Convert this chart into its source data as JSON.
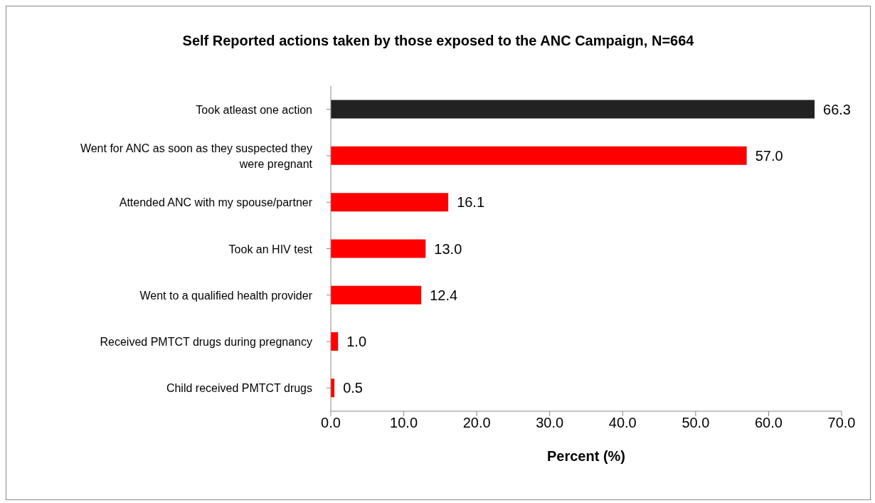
{
  "chart_data": {
    "type": "bar",
    "orientation": "horizontal",
    "title": "Self Reported actions taken by those exposed to the ANC Campaign, N=664",
    "xlabel": "Percent (%)",
    "categories": [
      "Took atleast one action",
      "Went for ANC as soon as they suspected they were pregnant",
      "Attended ANC with my spouse/partner",
      "Took an HIV test",
      "Went to a qualified health provider",
      "Received PMTCT drugs during pregnancy",
      "Child received PMTCT drugs"
    ],
    "values": [
      66.3,
      57.0,
      16.1,
      13.0,
      12.4,
      1.0,
      0.5
    ],
    "value_labels": [
      "66.3",
      "57.0",
      "16.1",
      "13.0",
      "12.4",
      "1.0",
      "0.5"
    ],
    "colors": [
      "#222222",
      "#ff0000",
      "#ff0000",
      "#ff0000",
      "#ff0000",
      "#ff0000",
      "#ff0000"
    ],
    "xlim": [
      0,
      70
    ],
    "xticks": [
      {
        "value": 0,
        "label": "0.0"
      },
      {
        "value": 10,
        "label": "10.0"
      },
      {
        "value": 20,
        "label": "20.0"
      },
      {
        "value": 30,
        "label": "30.0"
      },
      {
        "value": 40,
        "label": "40.0"
      },
      {
        "value": 50,
        "label": "50.0"
      },
      {
        "value": 60,
        "label": "60.0"
      },
      {
        "value": 70,
        "label": "70.0"
      }
    ],
    "grid": false,
    "legend": false
  }
}
